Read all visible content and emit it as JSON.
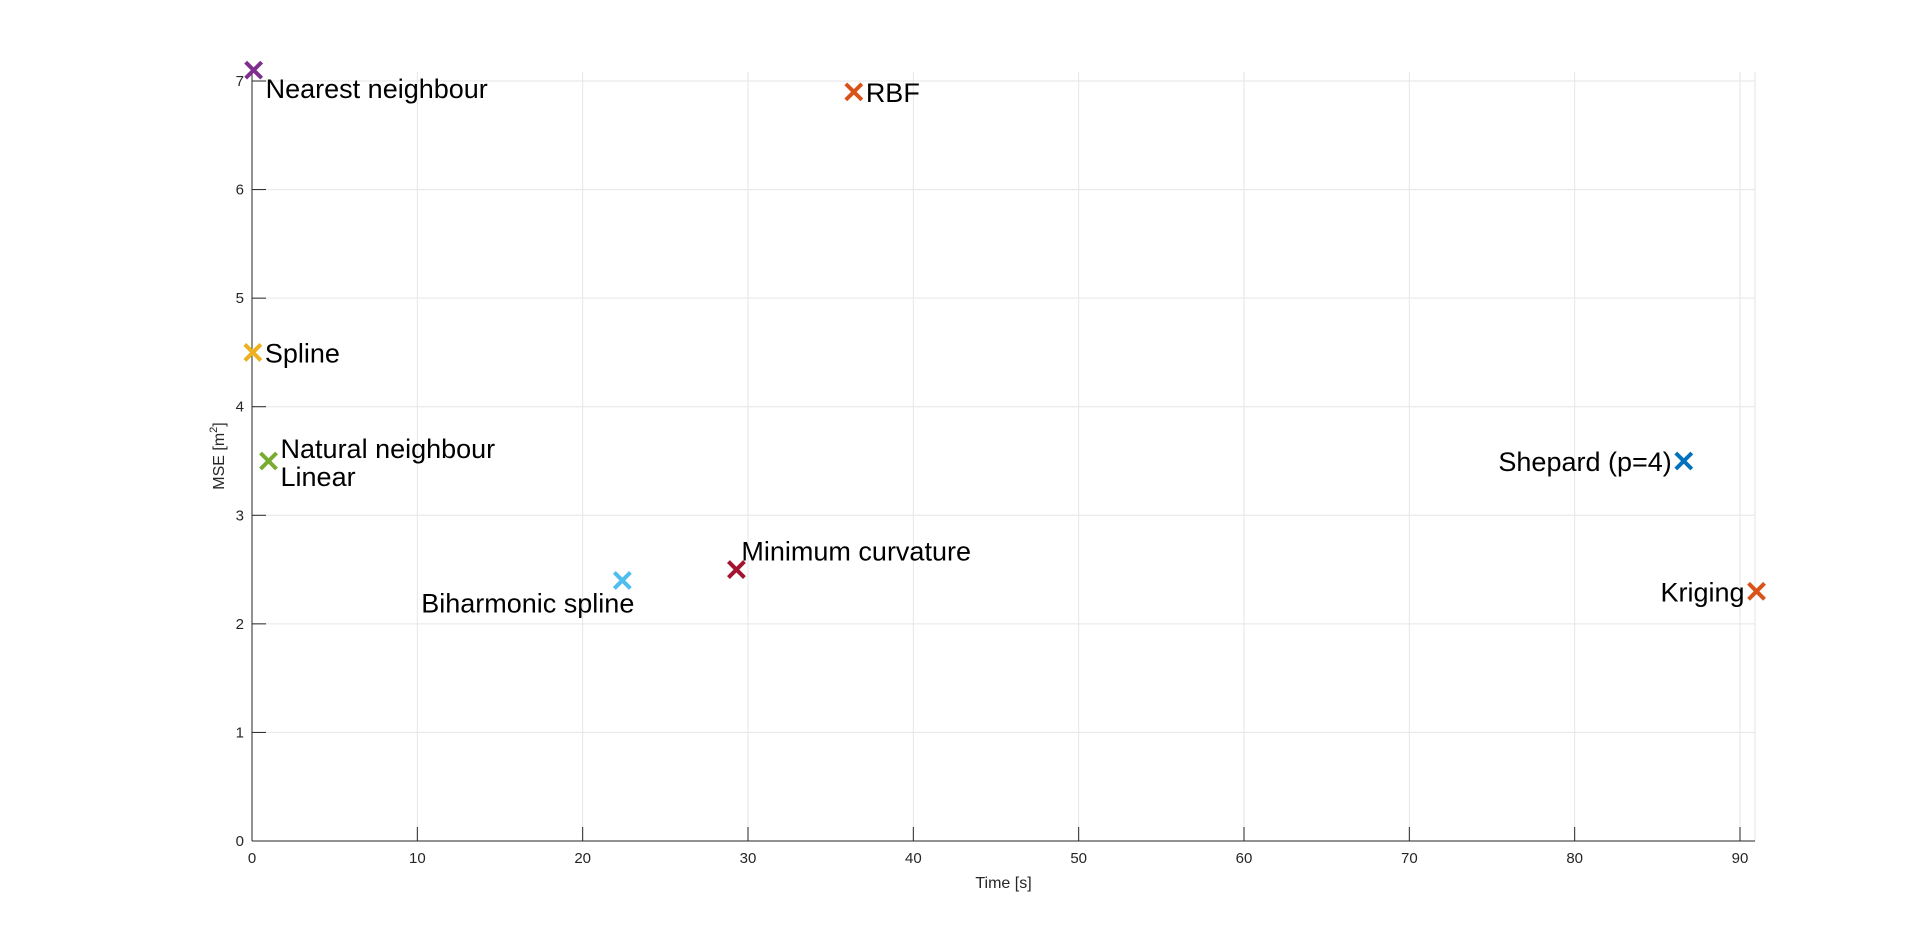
{
  "chart_data": {
    "type": "scatter",
    "title": "",
    "xlabel": "Time [s]",
    "ylabel_base": "MSE [m",
    "ylabel_sup": "2",
    "ylabel_tail": "]",
    "xlim": [
      0,
      91
    ],
    "ylim": [
      0,
      7
    ],
    "xticks": [
      0,
      10,
      20,
      30,
      40,
      50,
      60,
      70,
      80,
      90
    ],
    "yticks": [
      0,
      1,
      2,
      3,
      4,
      5,
      6,
      7
    ],
    "grid": true,
    "marker": "x",
    "points": [
      {
        "x": 0.1,
        "y": 7.1,
        "color": "#7E2F8E",
        "labels": [
          "Nearest neighbour"
        ],
        "label_pos": "below-right"
      },
      {
        "x": 36.4,
        "y": 6.9,
        "color": "#D95319",
        "labels": [
          "RBF"
        ],
        "label_pos": "right"
      },
      {
        "x": 0.05,
        "y": 4.5,
        "color": "#EDB120",
        "labels": [
          "Spline"
        ],
        "label_pos": "right"
      },
      {
        "x": 1.0,
        "y": 3.5,
        "color": "#77AC30",
        "labels": [
          "Natural neighbour",
          "Linear"
        ],
        "label_pos": "right-stack"
      },
      {
        "x": 86.6,
        "y": 3.5,
        "color": "#0072BD",
        "labels": [
          "Shepard (p=4)"
        ],
        "label_pos": "left"
      },
      {
        "x": 22.4,
        "y": 2.4,
        "color": "#4DBEEE",
        "labels": [
          "Biharmonic spline"
        ],
        "label_pos": "below-left"
      },
      {
        "x": 29.3,
        "y": 2.5,
        "color": "#A2142F",
        "labels": [
          "Minimum curvature"
        ],
        "label_pos": "above-right"
      },
      {
        "x": 91.0,
        "y": 2.3,
        "color": "#D95319",
        "labels": [
          "Kriging"
        ],
        "label_pos": "left"
      }
    ]
  },
  "colors": {
    "axis": "#262626",
    "grid": "#e6e6e6",
    "label": "#000000"
  }
}
